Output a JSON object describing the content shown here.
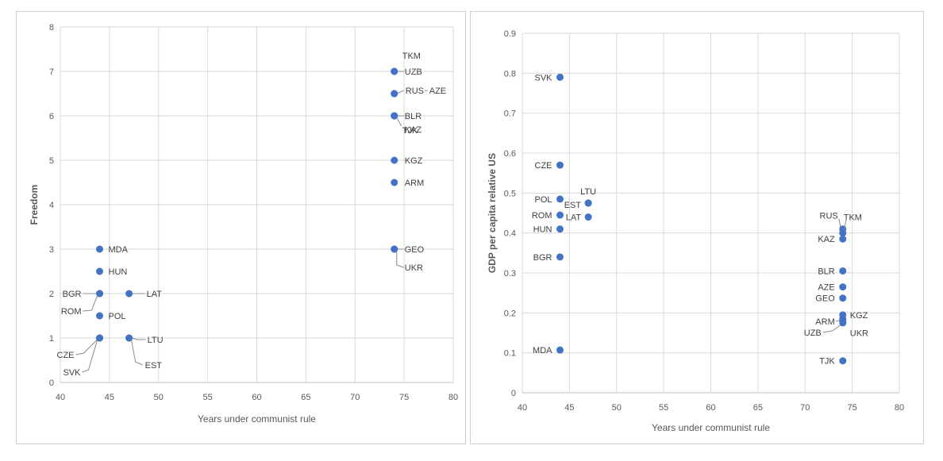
{
  "colors": {
    "marker": "#4472c4",
    "grid": "#d9d9d9",
    "axis_text": "#595959"
  },
  "chart_data": [
    {
      "type": "scatter",
      "title": "",
      "xlabel": "Years under communist rule",
      "ylabel": "Freedom",
      "xlim": [
        40,
        80
      ],
      "ylim": [
        0,
        8
      ],
      "xticks": [
        40,
        45,
        50,
        55,
        60,
        65,
        70,
        75,
        80
      ],
      "yticks": [
        0,
        1,
        2,
        3,
        4,
        5,
        6,
        7,
        8
      ],
      "grid": true,
      "points": [
        {
          "label": "TKM",
          "x": 74,
          "y": 7
        },
        {
          "label": "UZB",
          "x": 74,
          "y": 7
        },
        {
          "label": "RUS",
          "x": 74,
          "y": 6.5
        },
        {
          "label": "AZE",
          "x": 74,
          "y": 6.5
        },
        {
          "label": "TJK",
          "x": 74,
          "y": 6
        },
        {
          "label": "BLR",
          "x": 74,
          "y": 6
        },
        {
          "label": "KAZ",
          "x": 74,
          "y": 6
        },
        {
          "label": "KGZ",
          "x": 74,
          "y": 5
        },
        {
          "label": "ARM",
          "x": 74,
          "y": 4.5
        },
        {
          "label": "GEO",
          "x": 74,
          "y": 3
        },
        {
          "label": "UKR",
          "x": 74,
          "y": 3
        },
        {
          "label": "MDA",
          "x": 44,
          "y": 3
        },
        {
          "label": "HUN",
          "x": 44,
          "y": 2.5
        },
        {
          "label": "BGR",
          "x": 44,
          "y": 2
        },
        {
          "label": "ROM",
          "x": 44,
          "y": 2
        },
        {
          "label": "LAT",
          "x": 47,
          "y": 2
        },
        {
          "label": "POL",
          "x": 44,
          "y": 1.5
        },
        {
          "label": "LTU",
          "x": 47,
          "y": 1
        },
        {
          "label": "EST",
          "x": 47,
          "y": 1
        },
        {
          "label": "CZE",
          "x": 44,
          "y": 1
        },
        {
          "label": "SVK",
          "x": 44,
          "y": 1
        }
      ]
    },
    {
      "type": "scatter",
      "title": "",
      "xlabel": "Years under communist rule",
      "ylabel": "GDP per capita relative US",
      "xlim": [
        40,
        80
      ],
      "ylim": [
        0,
        0.9
      ],
      "xticks": [
        40,
        45,
        50,
        55,
        60,
        65,
        70,
        75,
        80
      ],
      "yticks": [
        "0",
        "0.1",
        "0.2",
        "0.3",
        "0.4",
        "0.5",
        "0.6",
        "0.7",
        "0.8",
        "0.9"
      ],
      "grid": true,
      "points": [
        {
          "label": "SVK",
          "x": 44,
          "y": 0.79
        },
        {
          "label": "CZE",
          "x": 44,
          "y": 0.57
        },
        {
          "label": "POL",
          "x": 44,
          "y": 0.485
        },
        {
          "label": "LTU",
          "x": 47,
          "y": 0.475
        },
        {
          "label": "EST",
          "x": 47,
          "y": 0.475
        },
        {
          "label": "ROM",
          "x": 44,
          "y": 0.445
        },
        {
          "label": "LAT",
          "x": 47,
          "y": 0.44
        },
        {
          "label": "HUN",
          "x": 44,
          "y": 0.41
        },
        {
          "label": "BGR",
          "x": 44,
          "y": 0.34
        },
        {
          "label": "MDA",
          "x": 44,
          "y": 0.107
        },
        {
          "label": "RUS",
          "x": 74,
          "y": 0.41
        },
        {
          "label": "TKM",
          "x": 74,
          "y": 0.4
        },
        {
          "label": "KAZ",
          "x": 74,
          "y": 0.385
        },
        {
          "label": "BLR",
          "x": 74,
          "y": 0.305
        },
        {
          "label": "AZE",
          "x": 74,
          "y": 0.265
        },
        {
          "label": "GEO",
          "x": 74,
          "y": 0.237
        },
        {
          "label": "KGZ",
          "x": 74,
          "y": 0.195
        },
        {
          "label": "ARM",
          "x": 74,
          "y": 0.185
        },
        {
          "label": "UZB",
          "x": 74,
          "y": 0.175
        },
        {
          "label": "UKR",
          "x": 74,
          "y": 0.18
        },
        {
          "label": "TJK",
          "x": 74,
          "y": 0.08
        }
      ]
    }
  ]
}
